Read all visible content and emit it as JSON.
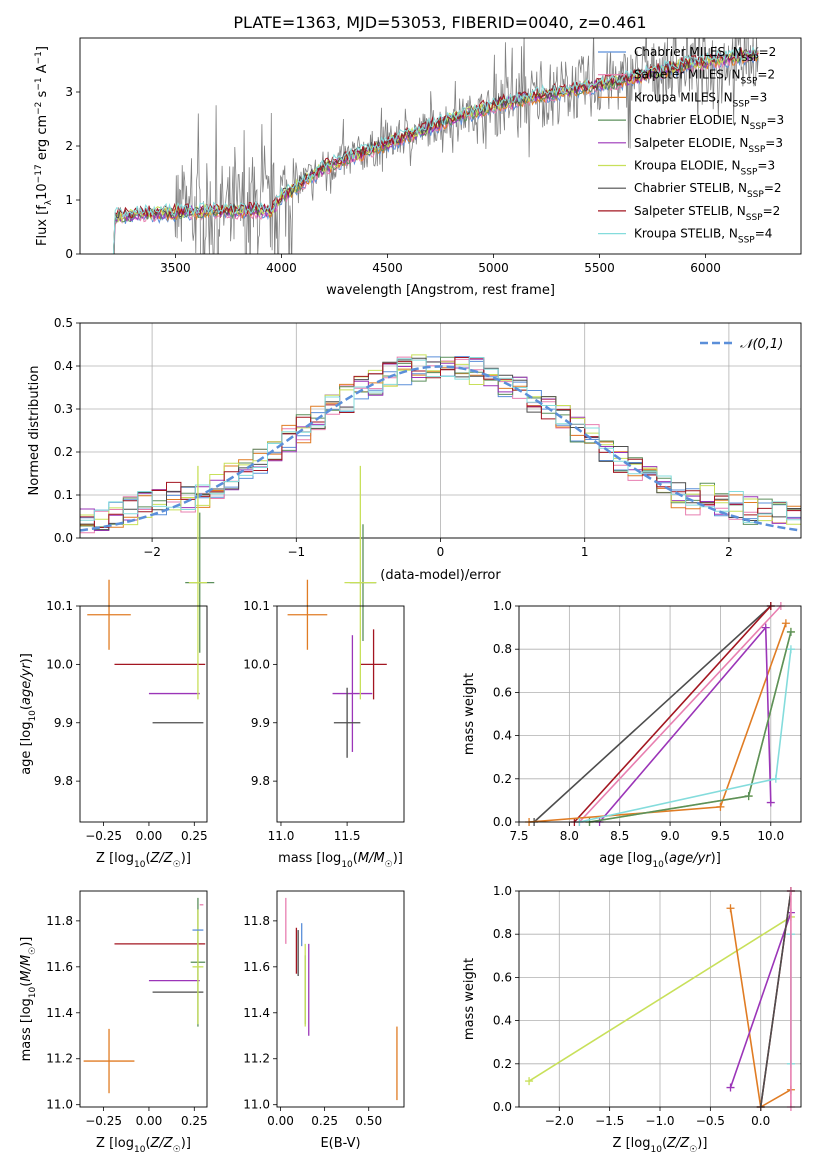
{
  "figure_title": "PLATE=1363, MJD=53053, FIBERID=0040, z=0.461",
  "colors": {
    "c_miles": "#5b8fd9",
    "s_miles": "#e87fb0",
    "k_miles": "#e07c24",
    "c_elodie": "#5c8f5c",
    "s_elodie": "#9b35b8",
    "k_elodie": "#c8e05a",
    "c_stelib": "#4d4d4d",
    "s_stelib": "#a31621",
    "k_stelib": "#84dcdc",
    "data": "#808080",
    "gauss": "#5b8fd9"
  },
  "legend": [
    {
      "key": "c_miles",
      "text": "Chabrier MILES, N",
      "sub": "SSP",
      "tail": "=2"
    },
    {
      "key": "s_miles",
      "text": "Salpeter MILES, N",
      "sub": "SSP",
      "tail": "=2"
    },
    {
      "key": "k_miles",
      "text": "Kroupa MILES, N",
      "sub": "SSP",
      "tail": "=3"
    },
    {
      "key": "c_elodie",
      "text": "Chabrier ELODIE, N",
      "sub": "SSP",
      "tail": "=3"
    },
    {
      "key": "s_elodie",
      "text": "Salpeter ELODIE, N",
      "sub": "SSP",
      "tail": "=3"
    },
    {
      "key": "k_elodie",
      "text": "Kroupa ELODIE, N",
      "sub": "SSP",
      "tail": "=3"
    },
    {
      "key": "c_stelib",
      "text": "Chabrier STELIB, N",
      "sub": "SSP",
      "tail": "=2"
    },
    {
      "key": "s_stelib",
      "text": "Salpeter STELIB, N",
      "sub": "SSP",
      "tail": "=2"
    },
    {
      "key": "k_stelib",
      "text": "Kroupa STELIB, N",
      "sub": "SSP",
      "tail": "=4"
    }
  ],
  "chart_data": [
    {
      "id": "spectrum",
      "type": "line",
      "xlabel": "wavelength [Angstrom, rest frame]",
      "ylabel": "Flux [f_λ 10^-17 erg cm^-2 s^-1 A^-1]",
      "xlim": [
        3050,
        6450
      ],
      "ylim": [
        0,
        4
      ],
      "xticks": [
        3500,
        4000,
        4500,
        5000,
        5500,
        6000
      ],
      "yticks": [
        0,
        1,
        2,
        3
      ],
      "grid": false,
      "legend_position": "top-right",
      "data_x_range": [
        3200,
        6250
      ],
      "model_continuum": [
        [
          3200,
          0.7
        ],
        [
          3400,
          0.75
        ],
        [
          3700,
          0.8
        ],
        [
          3950,
          0.8
        ],
        [
          4000,
          1.05
        ],
        [
          4200,
          1.6
        ],
        [
          4500,
          2.05
        ],
        [
          4800,
          2.5
        ],
        [
          5000,
          2.75
        ],
        [
          5300,
          3.0
        ],
        [
          5600,
          3.2
        ],
        [
          5900,
          3.5
        ],
        [
          6250,
          3.7
        ]
      ]
    },
    {
      "id": "residual_hist",
      "type": "line",
      "xlabel": "(data-model)/error",
      "ylabel": "Normed distribution",
      "xlim": [
        -2.5,
        2.5
      ],
      "ylim": [
        0,
        0.5
      ],
      "xticks": [
        -2,
        -1,
        0,
        1,
        2
      ],
      "yticks": [
        0.0,
        0.1,
        0.2,
        0.3,
        0.4,
        0.5
      ],
      "grid": true,
      "legend_position": "top-right",
      "gauss_label": "𝒩(0,1)",
      "bin_width": 0.1
    },
    {
      "id": "age_vs_Z",
      "type": "scatter",
      "xlabel": "Z [log10(Z/Z☉)]",
      "ylabel": "age [log10(age/yr)]",
      "xlim": [
        -0.38,
        0.32
      ],
      "ylim": [
        9.73,
        10.1
      ],
      "xticks": [
        -0.25,
        0.0,
        0.25
      ],
      "yticks": [
        9.8,
        9.9,
        10.0,
        10.1
      ],
      "xtick_labels": [
        "−0.25",
        "0.00",
        "0.25"
      ],
      "ytick_labels": [
        "9.8",
        "9.9",
        "10.0",
        "10.1"
      ],
      "points": [
        {
          "key": "k_miles",
          "x": -0.22,
          "y": 10.085,
          "xerr": 0.12,
          "yerr": 0.06
        },
        {
          "key": "s_stelib",
          "x": 0.06,
          "y": 10.0,
          "xerr": 0.25,
          "yerr": 0.0
        },
        {
          "key": "s_elodie",
          "x": 0.14,
          "y": 9.95,
          "xerr": 0.14,
          "yerr": 0.0
        },
        {
          "key": "c_stelib",
          "x": 0.16,
          "y": 9.9,
          "xerr": 0.14,
          "yerr": 0.0
        },
        {
          "key": "c_elodie",
          "x": 0.28,
          "y": 10.14,
          "xerr": 0.08,
          "yerr": 0.12
        },
        {
          "key": "k_elodie",
          "x": 0.27,
          "y": 10.14,
          "xerr": 0.05,
          "yerr": 0.2
        }
      ]
    },
    {
      "id": "age_vs_mass",
      "type": "scatter",
      "xlabel": "mass [log10(M/M☉)]",
      "ylabel": "",
      "xlim": [
        10.97,
        11.93
      ],
      "ylim": [
        9.73,
        10.1
      ],
      "xticks": [
        11.0,
        11.5
      ],
      "yticks": [
        9.8,
        9.9,
        10.0,
        10.1
      ],
      "xtick_labels": [
        "11.0",
        "11.5"
      ],
      "ytick_labels": [
        "9.8",
        "9.9",
        "10.0",
        "10.1"
      ],
      "points": [
        {
          "key": "k_miles",
          "x": 11.2,
          "y": 10.085,
          "xerr": 0.15,
          "yerr": 0.06
        },
        {
          "key": "s_stelib",
          "x": 11.7,
          "y": 10.0,
          "xerr": 0.1,
          "yerr": 0.06
        },
        {
          "key": "s_elodie",
          "x": 11.54,
          "y": 9.95,
          "xerr": 0.15,
          "yerr": 0.1
        },
        {
          "key": "c_stelib",
          "x": 11.5,
          "y": 9.9,
          "xerr": 0.1,
          "yerr": 0.06
        },
        {
          "key": "c_elodie",
          "x": 11.62,
          "y": 10.14,
          "xerr": 0.1,
          "yerr": 0.1
        },
        {
          "key": "k_elodie",
          "x": 11.6,
          "y": 10.14,
          "xerr": 0.12,
          "yerr": 0.2
        }
      ]
    },
    {
      "id": "mass_weight_vs_age",
      "type": "line",
      "xlabel": "age [log10(age/yr)]",
      "ylabel": "mass weight",
      "xlim": [
        7.5,
        10.3
      ],
      "ylim": [
        0,
        1
      ],
      "xticks": [
        7.5,
        8.0,
        8.5,
        9.0,
        9.5,
        10.0
      ],
      "yticks": [
        0.0,
        0.2,
        0.4,
        0.6,
        0.8,
        1.0
      ],
      "grid": true,
      "series": [
        {
          "key": "c_stelib",
          "points": [
            [
              7.65,
              0.0
            ],
            [
              10.0,
              1.0
            ]
          ]
        },
        {
          "key": "s_stelib",
          "points": [
            [
              8.05,
              0.0
            ],
            [
              10.0,
              1.0
            ]
          ]
        },
        {
          "key": "s_miles",
          "points": [
            [
              8.1,
              0.0
            ],
            [
              10.1,
              1.0
            ]
          ]
        },
        {
          "key": "k_miles",
          "points": [
            [
              7.6,
              0.0
            ],
            [
              9.5,
              0.07
            ],
            [
              10.15,
              0.92
            ]
          ]
        },
        {
          "key": "s_elodie",
          "points": [
            [
              8.3,
              0.0
            ],
            [
              9.95,
              0.9
            ],
            [
              10.0,
              0.09
            ]
          ]
        },
        {
          "key": "k_elodie",
          "points": [
            [
              8.2,
              0.0
            ],
            [
              9.78,
              0.12
            ],
            [
              10.2,
              0.88
            ]
          ]
        },
        {
          "key": "c_elodie",
          "points": [
            [
              8.2,
              0.0
            ],
            [
              9.78,
              0.12
            ],
            [
              10.2,
              0.88
            ]
          ]
        },
        {
          "key": "k_stelib",
          "points": [
            [
              8.1,
              0.0
            ],
            [
              10.05,
              0.2
            ],
            [
              10.2,
              0.8
            ]
          ]
        }
      ]
    },
    {
      "id": "mass_vs_Z",
      "type": "scatter",
      "xlabel": "Z [log10(Z/Z☉)]",
      "ylabel": "mass [log10(M/M☉)]",
      "xlim": [
        -0.38,
        0.32
      ],
      "ylim": [
        10.99,
        11.93
      ],
      "xticks": [
        -0.25,
        0.0,
        0.25
      ],
      "yticks": [
        11.0,
        11.2,
        11.4,
        11.6,
        11.8
      ],
      "xtick_labels": [
        "−0.25",
        "0.00",
        "0.25"
      ],
      "ytick_labels": [
        "11.0",
        "11.2",
        "11.4",
        "11.6",
        "11.8"
      ],
      "points": [
        {
          "key": "k_miles",
          "x": -0.22,
          "y": 11.19,
          "xerr": 0.14,
          "yerr": 0.14
        },
        {
          "key": "s_stelib",
          "x": 0.06,
          "y": 11.7,
          "xerr": 0.25,
          "yerr": 0.0
        },
        {
          "key": "s_elodie",
          "x": 0.14,
          "y": 11.54,
          "xerr": 0.14,
          "yerr": 0.0
        },
        {
          "key": "c_stelib",
          "x": 0.16,
          "y": 11.49,
          "xerr": 0.14,
          "yerr": 0.0
        },
        {
          "key": "c_elodie",
          "x": 0.27,
          "y": 11.62,
          "xerr": 0.04,
          "yerr": 0.28
        },
        {
          "key": "k_elodie",
          "x": 0.27,
          "y": 11.6,
          "xerr": 0.03,
          "yerr": 0.25
        },
        {
          "key": "c_miles",
          "x": 0.27,
          "y": 11.76,
          "xerr": 0.03,
          "yerr": 0.0
        },
        {
          "key": "s_miles",
          "x": 0.29,
          "y": 11.87,
          "xerr": 0.01,
          "yerr": 0.0
        }
      ]
    },
    {
      "id": "mass_vs_ebv",
      "type": "scatter",
      "xlabel": "E(B-V)",
      "ylabel": "",
      "xlim": [
        -0.02,
        0.7
      ],
      "ylim": [
        10.99,
        11.93
      ],
      "xticks": [
        0.0,
        0.25,
        0.5
      ],
      "yticks": [
        11.0,
        11.2,
        11.4,
        11.6,
        11.8
      ],
      "xtick_labels": [
        "0.00",
        "0.25",
        "0.50"
      ],
      "ytick_labels": [
        "11.0",
        "11.2",
        "11.4",
        "11.6",
        "11.8"
      ],
      "points": [
        {
          "key": "s_miles",
          "x": 0.03,
          "y": 11.8,
          "xerr": 0,
          "yerr": 0.1
        },
        {
          "key": "s_stelib",
          "x": 0.09,
          "y": 11.67,
          "xerr": 0,
          "yerr": 0.1
        },
        {
          "key": "c_stelib",
          "x": 0.1,
          "y": 11.66,
          "xerr": 0,
          "yerr": 0.1
        },
        {
          "key": "c_miles",
          "x": 0.12,
          "y": 11.74,
          "xerr": 0,
          "yerr": 0.05
        },
        {
          "key": "c_elodie",
          "x": 0.14,
          "y": 11.5,
          "xerr": 0,
          "yerr": 0.15
        },
        {
          "key": "k_elodie",
          "x": 0.14,
          "y": 11.52,
          "xerr": 0,
          "yerr": 0.18
        },
        {
          "key": "s_elodie",
          "x": 0.16,
          "y": 11.5,
          "xerr": 0,
          "yerr": 0.2
        },
        {
          "key": "k_miles",
          "x": 0.66,
          "y": 11.18,
          "xerr": 0,
          "yerr": 0.16
        }
      ]
    },
    {
      "id": "mass_weight_vs_Z",
      "type": "line",
      "xlabel": "Z [log10(Z/Z☉)]",
      "ylabel": "mass weight",
      "xlim": [
        -2.4,
        0.4
      ],
      "ylim": [
        0,
        1
      ],
      "xticks": [
        -2.0,
        -1.5,
        -1.0,
        -0.5,
        0.0
      ],
      "yticks": [
        0.0,
        0.2,
        0.4,
        0.6,
        0.8,
        1.0
      ],
      "grid": true,
      "series": [
        {
          "key": "k_elodie",
          "points": [
            [
              -2.3,
              0.12
            ],
            [
              0.3,
              0.88
            ]
          ]
        },
        {
          "key": "k_miles",
          "points": [
            [
              -0.3,
              0.92
            ],
            [
              0.0,
              0.0
            ],
            [
              0.3,
              0.08
            ]
          ]
        },
        {
          "key": "s_elodie",
          "points": [
            [
              -0.3,
              0.09
            ],
            [
              0.3,
              0.9
            ]
          ]
        },
        {
          "key": "s_stelib",
          "points": [
            [
              0.0,
              0.0
            ],
            [
              0.3,
              1.0
            ]
          ]
        },
        {
          "key": "c_stelib",
          "points": [
            [
              0.0,
              0.0
            ],
            [
              0.3,
              1.0
            ]
          ]
        },
        {
          "key": "k_stelib",
          "points": [
            [
              0.3,
              0.2
            ],
            [
              0.3,
              0.8
            ]
          ]
        },
        {
          "key": "s_miles",
          "points": [
            [
              0.3,
              0.0
            ],
            [
              0.3,
              1.0
            ]
          ]
        }
      ]
    }
  ]
}
